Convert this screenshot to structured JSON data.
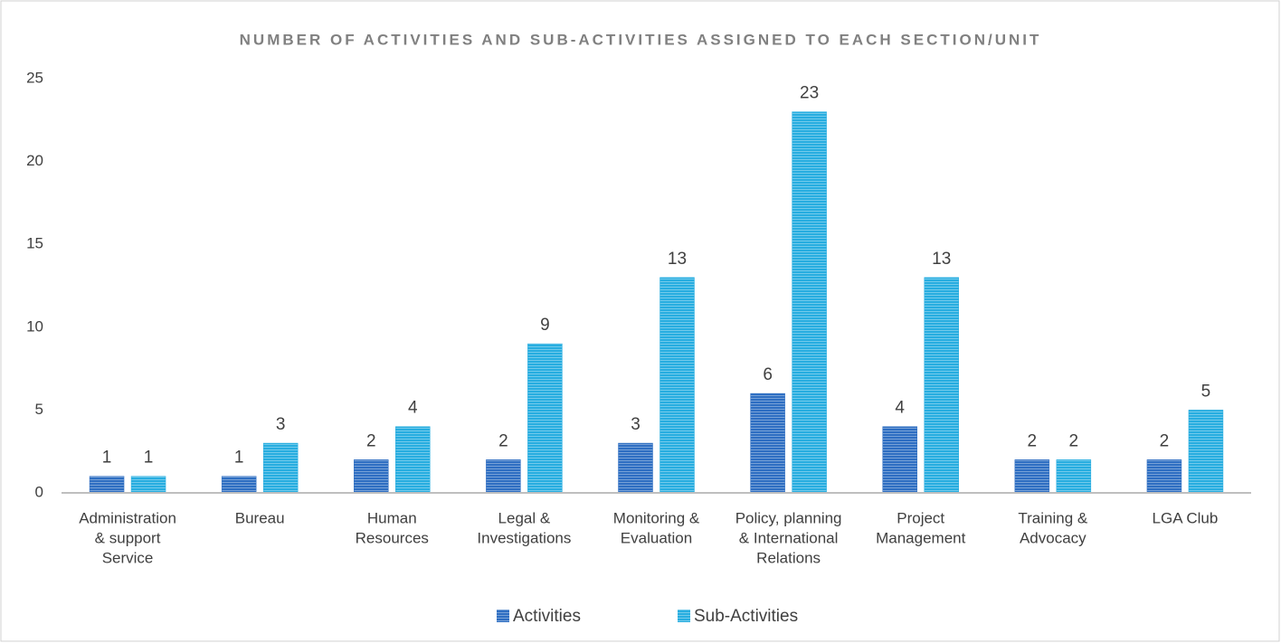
{
  "chart_data": {
    "type": "bar",
    "title": "NUMBER OF ACTIVITIES AND SUB-ACTIVITIES ASSIGNED TO EACH SECTION/UNIT",
    "categories": [
      [
        "Administration",
        "& support",
        "Service"
      ],
      [
        "Bureau"
      ],
      [
        "Human",
        "Resources"
      ],
      [
        "Legal &",
        "Investigations"
      ],
      [
        "Monitoring &",
        "Evaluation"
      ],
      [
        "Policy, planning",
        "& International",
        "Relations"
      ],
      [
        "Project",
        "Management"
      ],
      [
        "Training &",
        "Advocacy"
      ],
      [
        "LGA Club"
      ]
    ],
    "series": [
      {
        "name": "Activities",
        "color": "#2e6ec2",
        "values": [
          1,
          1,
          2,
          2,
          3,
          6,
          4,
          2,
          2
        ]
      },
      {
        "name": "Sub-Activities",
        "color": "#27ade0",
        "values": [
          1,
          3,
          4,
          9,
          13,
          23,
          13,
          2,
          5
        ]
      }
    ],
    "ylim": [
      0,
      25
    ],
    "yticks": [
      0,
      5,
      10,
      15,
      20,
      25
    ],
    "grid": false,
    "legend": "bottom"
  }
}
